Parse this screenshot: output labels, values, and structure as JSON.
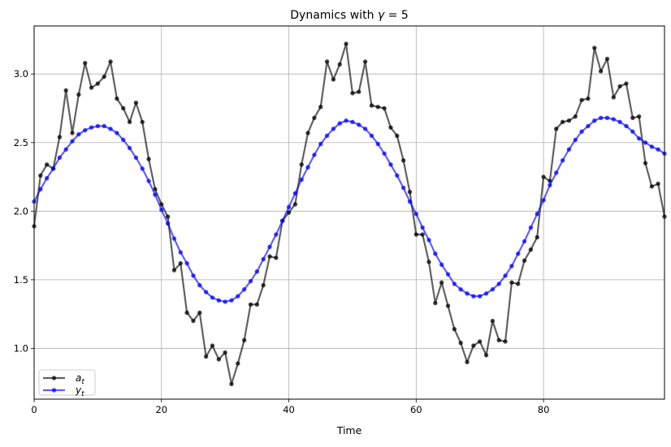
{
  "chart_data": {
    "type": "line",
    "title_prefix": "Dynamics with ",
    "title_symbol": "γ",
    "title_suffix": " = 5",
    "xlabel": "Time",
    "ylabel": "",
    "xlim": [
      0,
      99
    ],
    "ylim": [
      0.63,
      3.35
    ],
    "xticks": [
      0,
      20,
      40,
      60,
      80
    ],
    "yticks": [
      1.0,
      1.5,
      2.0,
      2.5,
      3.0
    ],
    "xtick_labels": [
      "0",
      "20",
      "40",
      "60",
      "80"
    ],
    "ytick_labels": [
      "1.0",
      "1.5",
      "2.0",
      "2.5",
      "3.0"
    ],
    "grid": true,
    "legend_position": "lower-left",
    "series": [
      {
        "name_base": "a",
        "name_sub": "t",
        "color": "#000000",
        "values": [
          1.89,
          2.26,
          2.34,
          2.31,
          2.54,
          2.88,
          2.57,
          2.85,
          3.08,
          2.9,
          2.93,
          2.98,
          3.09,
          2.82,
          2.75,
          2.65,
          2.79,
          2.65,
          2.38,
          2.16,
          2.05,
          1.96,
          1.57,
          1.62,
          1.26,
          1.2,
          1.26,
          0.94,
          1.02,
          0.92,
          0.97,
          0.74,
          0.89,
          1.06,
          1.32,
          1.32,
          1.46,
          1.67,
          1.66,
          1.93,
          1.99,
          2.05,
          2.34,
          2.57,
          2.68,
          2.76,
          3.09,
          2.96,
          3.07,
          3.22,
          2.86,
          2.87,
          3.09,
          2.77,
          2.76,
          2.75,
          2.61,
          2.55,
          2.37,
          2.14,
          1.83,
          1.83,
          1.63,
          1.33,
          1.48,
          1.31,
          1.14,
          1.04,
          0.9,
          1.02,
          1.05,
          0.95,
          1.2,
          1.06,
          1.05,
          1.48,
          1.47,
          1.64,
          1.72,
          1.81,
          2.25,
          2.22,
          2.6,
          2.65,
          2.66,
          2.69,
          2.81,
          2.82,
          3.19,
          3.02,
          3.11,
          2.83,
          2.91,
          2.93,
          2.68,
          2.69,
          2.35,
          2.18,
          2.2,
          1.96
        ]
      },
      {
        "name_base": "y",
        "name_sub": "t",
        "color": "#0000ff",
        "values": [
          2.07,
          2.16,
          2.24,
          2.31,
          2.39,
          2.45,
          2.51,
          2.56,
          2.59,
          2.61,
          2.62,
          2.62,
          2.6,
          2.57,
          2.52,
          2.46,
          2.39,
          2.31,
          2.22,
          2.12,
          2.01,
          1.91,
          1.8,
          1.7,
          1.62,
          1.53,
          1.46,
          1.41,
          1.37,
          1.35,
          1.34,
          1.35,
          1.38,
          1.43,
          1.49,
          1.56,
          1.65,
          1.74,
          1.83,
          1.93,
          2.03,
          2.13,
          2.23,
          2.32,
          2.41,
          2.49,
          2.55,
          2.6,
          2.64,
          2.66,
          2.65,
          2.63,
          2.6,
          2.55,
          2.49,
          2.42,
          2.34,
          2.26,
          2.17,
          2.07,
          1.98,
          1.88,
          1.79,
          1.69,
          1.61,
          1.54,
          1.47,
          1.43,
          1.4,
          1.38,
          1.38,
          1.4,
          1.43,
          1.47,
          1.53,
          1.6,
          1.69,
          1.78,
          1.88,
          1.98,
          2.08,
          2.19,
          2.28,
          2.37,
          2.45,
          2.52,
          2.58,
          2.62,
          2.66,
          2.68,
          2.68,
          2.67,
          2.65,
          2.62,
          2.58,
          2.53,
          2.5,
          2.47,
          2.45,
          2.42
        ]
      }
    ]
  }
}
